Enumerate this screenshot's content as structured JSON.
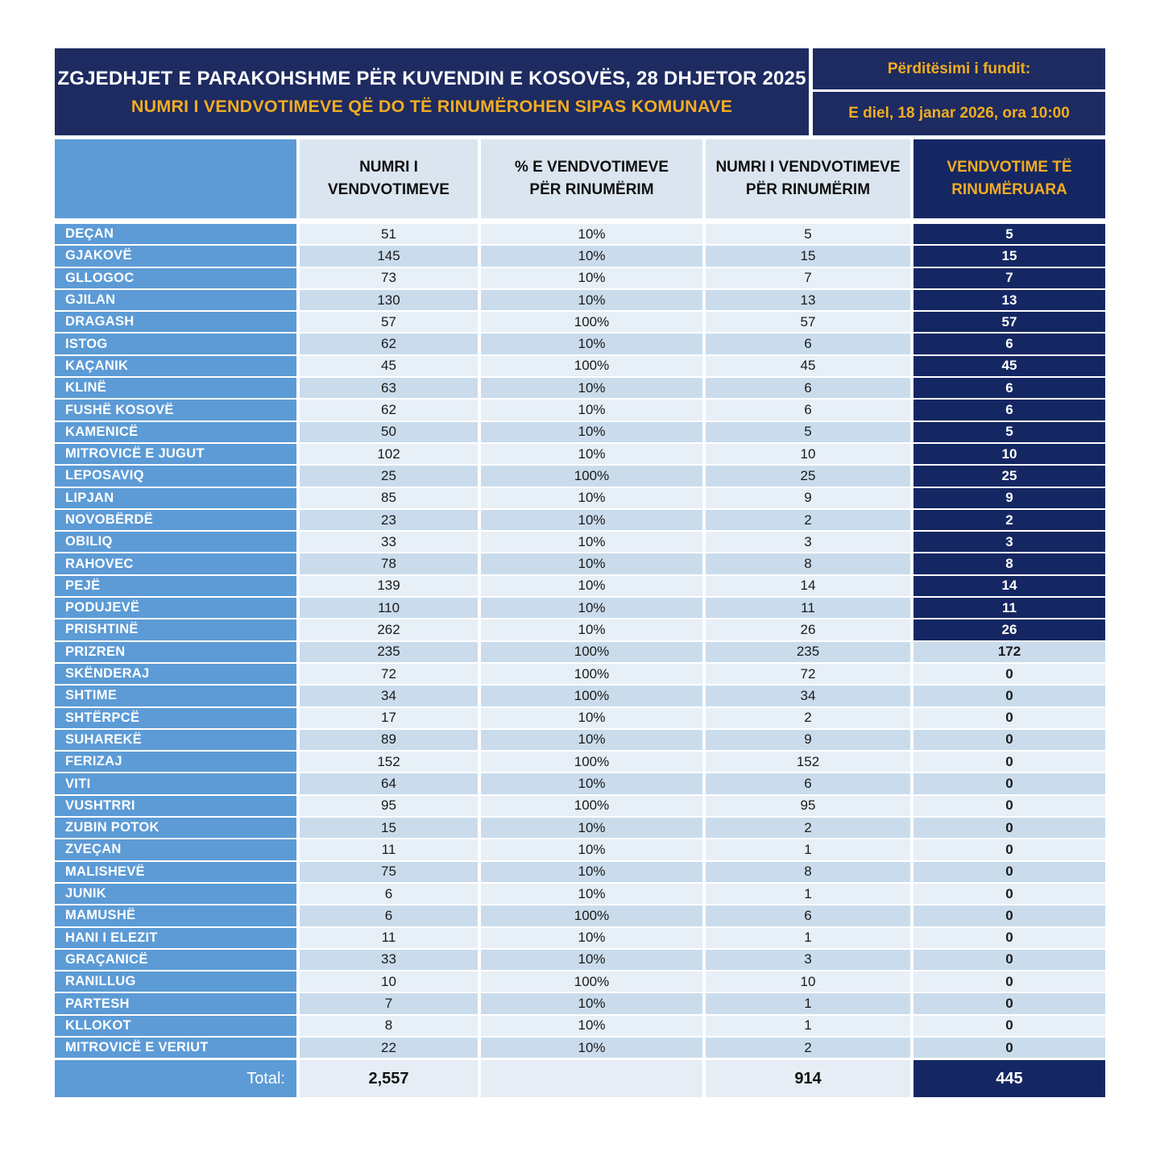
{
  "header": {
    "title_line1": "ZGJEDHJET E PARAKOHSHME PËR KUVENDIN E KOSOVËS, 28 DHJETOR 2025",
    "title_line2": "NUMRI I VENDVOTIMEVE QË DO TË RINUMËROHEN SIPAS KOMUNAVE",
    "update_label": "Përditësimi i fundit:",
    "update_value": "E diel, 18 janar 2026, ora 10:00"
  },
  "colors": {
    "navy": "#1D2B61",
    "column_navy": "#152763",
    "medium_blue": "#5C9BD6",
    "gold": "#F2AC21",
    "band_light": "#E7EFF7",
    "band_dark": "#CADCEC",
    "header_cell_bg": "#DBE5EF"
  },
  "chart_data": {
    "type": "table",
    "title": "ZGJEDHJET E PARAKOHSHME PËR KUVENDIN E KOSOVËS, 28 DHJETOR 2025",
    "subtitle": "NUMRI I VENDVOTIMEVE QË DO TË RINUMËROHEN SIPAS KOMUNAVE",
    "columns": [
      "",
      "NUMRI I\nVENDVOTIMEVE",
      "% E VENDVOTIMEVE\nPËR RINUMËRIM",
      "NUMRI I VENDVOTIMEVE\nPËR RINUMËRIM",
      "VENDVOTIME TË\nRINUMËRUARA"
    ],
    "rows": [
      {
        "municipality": "DEÇAN",
        "stations": 51,
        "percent": "10%",
        "for_recount": 5,
        "recounted": 5,
        "recounted_highlight": true
      },
      {
        "municipality": "GJAKOVË",
        "stations": 145,
        "percent": "10%",
        "for_recount": 15,
        "recounted": 15,
        "recounted_highlight": true
      },
      {
        "municipality": "GLLOGOC",
        "stations": 73,
        "percent": "10%",
        "for_recount": 7,
        "recounted": 7,
        "recounted_highlight": true
      },
      {
        "municipality": "GJILAN",
        "stations": 130,
        "percent": "10%",
        "for_recount": 13,
        "recounted": 13,
        "recounted_highlight": true
      },
      {
        "municipality": "DRAGASH",
        "stations": 57,
        "percent": "100%",
        "for_recount": 57,
        "recounted": 57,
        "recounted_highlight": true
      },
      {
        "municipality": "ISTOG",
        "stations": 62,
        "percent": "10%",
        "for_recount": 6,
        "recounted": 6,
        "recounted_highlight": true
      },
      {
        "municipality": "KAÇANIK",
        "stations": 45,
        "percent": "100%",
        "for_recount": 45,
        "recounted": 45,
        "recounted_highlight": true
      },
      {
        "municipality": "KLINË",
        "stations": 63,
        "percent": "10%",
        "for_recount": 6,
        "recounted": 6,
        "recounted_highlight": true
      },
      {
        "municipality": "FUSHË KOSOVË",
        "stations": 62,
        "percent": "10%",
        "for_recount": 6,
        "recounted": 6,
        "recounted_highlight": true
      },
      {
        "municipality": "KAMENICË",
        "stations": 50,
        "percent": "10%",
        "for_recount": 5,
        "recounted": 5,
        "recounted_highlight": true
      },
      {
        "municipality": "MITROVICË E JUGUT",
        "stations": 102,
        "percent": "10%",
        "for_recount": 10,
        "recounted": 10,
        "recounted_highlight": true
      },
      {
        "municipality": "LEPOSAVIQ",
        "stations": 25,
        "percent": "100%",
        "for_recount": 25,
        "recounted": 25,
        "recounted_highlight": true
      },
      {
        "municipality": "LIPJAN",
        "stations": 85,
        "percent": "10%",
        "for_recount": 9,
        "recounted": 9,
        "recounted_highlight": true
      },
      {
        "municipality": "NOVOBËRDË",
        "stations": 23,
        "percent": "10%",
        "for_recount": 2,
        "recounted": 2,
        "recounted_highlight": true
      },
      {
        "municipality": "OBILIQ",
        "stations": 33,
        "percent": "10%",
        "for_recount": 3,
        "recounted": 3,
        "recounted_highlight": true
      },
      {
        "municipality": "RAHOVEC",
        "stations": 78,
        "percent": "10%",
        "for_recount": 8,
        "recounted": 8,
        "recounted_highlight": true
      },
      {
        "municipality": "PEJË",
        "stations": 139,
        "percent": "10%",
        "for_recount": 14,
        "recounted": 14,
        "recounted_highlight": true
      },
      {
        "municipality": "PODUJEVË",
        "stations": 110,
        "percent": "10%",
        "for_recount": 11,
        "recounted": 11,
        "recounted_highlight": true
      },
      {
        "municipality": "PRISHTINË",
        "stations": 262,
        "percent": "10%",
        "for_recount": 26,
        "recounted": 26,
        "recounted_highlight": true
      },
      {
        "municipality": "PRIZREN",
        "stations": 235,
        "percent": "100%",
        "for_recount": 235,
        "recounted": 172,
        "recounted_highlight": false
      },
      {
        "municipality": "SKËNDERAJ",
        "stations": 72,
        "percent": "100%",
        "for_recount": 72,
        "recounted": 0,
        "recounted_highlight": false
      },
      {
        "municipality": "SHTIME",
        "stations": 34,
        "percent": "100%",
        "for_recount": 34,
        "recounted": 0,
        "recounted_highlight": false
      },
      {
        "municipality": "SHTËRPCË",
        "stations": 17,
        "percent": "10%",
        "for_recount": 2,
        "recounted": 0,
        "recounted_highlight": false
      },
      {
        "municipality": "SUHAREKË",
        "stations": 89,
        "percent": "10%",
        "for_recount": 9,
        "recounted": 0,
        "recounted_highlight": false
      },
      {
        "municipality": "FERIZAJ",
        "stations": 152,
        "percent": "100%",
        "for_recount": 152,
        "recounted": 0,
        "recounted_highlight": false
      },
      {
        "municipality": "VITI",
        "stations": 64,
        "percent": "10%",
        "for_recount": 6,
        "recounted": 0,
        "recounted_highlight": false
      },
      {
        "municipality": "VUSHTRRI",
        "stations": 95,
        "percent": "100%",
        "for_recount": 95,
        "recounted": 0,
        "recounted_highlight": false
      },
      {
        "municipality": "ZUBIN POTOK",
        "stations": 15,
        "percent": "10%",
        "for_recount": 2,
        "recounted": 0,
        "recounted_highlight": false
      },
      {
        "municipality": "ZVEÇAN",
        "stations": 11,
        "percent": "10%",
        "for_recount": 1,
        "recounted": 0,
        "recounted_highlight": false
      },
      {
        "municipality": "MALISHEVË",
        "stations": 75,
        "percent": "10%",
        "for_recount": 8,
        "recounted": 0,
        "recounted_highlight": false
      },
      {
        "municipality": "JUNIK",
        "stations": 6,
        "percent": "10%",
        "for_recount": 1,
        "recounted": 0,
        "recounted_highlight": false
      },
      {
        "municipality": "MAMUSHË",
        "stations": 6,
        "percent": "100%",
        "for_recount": 6,
        "recounted": 0,
        "recounted_highlight": false
      },
      {
        "municipality": "HANI I ELEZIT",
        "stations": 11,
        "percent": "10%",
        "for_recount": 1,
        "recounted": 0,
        "recounted_highlight": false
      },
      {
        "municipality": "GRAÇANICË",
        "stations": 33,
        "percent": "10%",
        "for_recount": 3,
        "recounted": 0,
        "recounted_highlight": false
      },
      {
        "municipality": "RANILLUG",
        "stations": 10,
        "percent": "100%",
        "for_recount": 10,
        "recounted": 0,
        "recounted_highlight": false
      },
      {
        "municipality": "PARTESH",
        "stations": 7,
        "percent": "10%",
        "for_recount": 1,
        "recounted": 0,
        "recounted_highlight": false
      },
      {
        "municipality": "KLLOKOT",
        "stations": 8,
        "percent": "10%",
        "for_recount": 1,
        "recounted": 0,
        "recounted_highlight": false
      },
      {
        "municipality": "MITROVICË E VERIUT",
        "stations": 22,
        "percent": "10%",
        "for_recount": 2,
        "recounted": 0,
        "recounted_highlight": false
      }
    ],
    "total": {
      "label": "Total:",
      "stations": "2,557",
      "percent": "",
      "for_recount": "914",
      "recounted": "445"
    }
  }
}
